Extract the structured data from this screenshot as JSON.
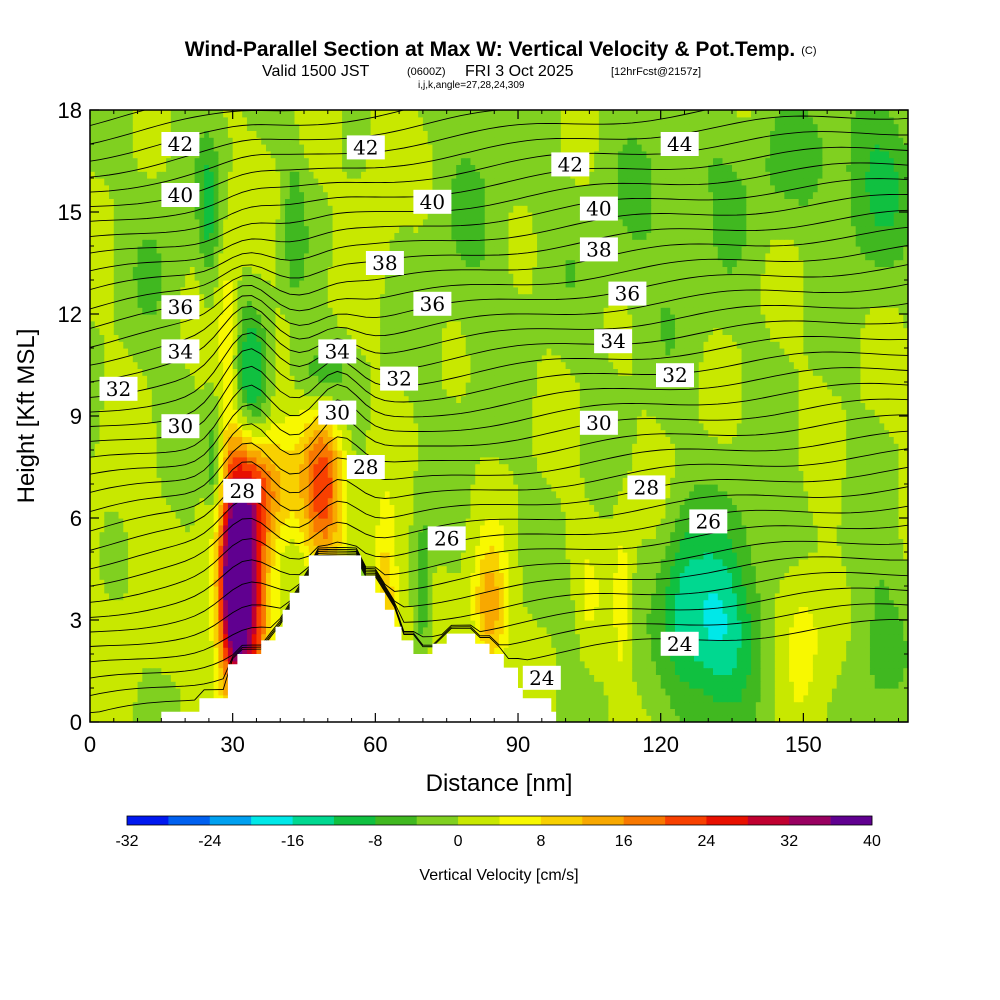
{
  "title": {
    "main": "Wind-Parallel Section at Max W: Vertical Velocity & Pot.Temp.",
    "copyright": "(C)",
    "valid_prefix": "Valid 1500 JST",
    "utc": "(0600Z)",
    "valid_date": "FRI 3 Oct 2025",
    "forecast": "[12hrFcst@2157z]",
    "indices": "i,j,k,angle=27,28,24,309"
  },
  "chart_data": {
    "type": "heatmap",
    "xlabel": "Distance [nm]",
    "ylabel": "Height [Kft MSL]",
    "xlim": [
      0,
      172
    ],
    "ylim": [
      0,
      18
    ],
    "x_ticks": [
      0,
      30,
      60,
      90,
      120,
      150
    ],
    "y_ticks": [
      0,
      3,
      6,
      9,
      12,
      15,
      18
    ],
    "colorbar": {
      "title": "Vertical Velocity [cm/s]",
      "min": -32,
      "max": 40,
      "step": 4,
      "tick_labels": [
        "-32",
        "-24",
        "-16",
        "-8",
        "0",
        "8",
        "16",
        "24",
        "32",
        "40"
      ],
      "colors": [
        "#0018f0",
        "#0060f0",
        "#00a0f0",
        "#00e8e8",
        "#00d890",
        "#10c040",
        "#40b820",
        "#80d020",
        "#c8e800",
        "#f8f800",
        "#f8d000",
        "#f8a800",
        "#f87800",
        "#f84000",
        "#e81000",
        "#c00030",
        "#980060",
        "#600090"
      ]
    },
    "contour_labels": [
      {
        "value": "42",
        "x": 19,
        "y": 17.0
      },
      {
        "value": "42",
        "x": 58,
        "y": 16.9
      },
      {
        "value": "42",
        "x": 101,
        "y": 16.4
      },
      {
        "value": "44",
        "x": 124,
        "y": 17.0
      },
      {
        "value": "40",
        "x": 19,
        "y": 15.5
      },
      {
        "value": "40",
        "x": 72,
        "y": 15.3
      },
      {
        "value": "40",
        "x": 107,
        "y": 15.1
      },
      {
        "value": "38",
        "x": 62,
        "y": 13.5
      },
      {
        "value": "38",
        "x": 107,
        "y": 13.9
      },
      {
        "value": "36",
        "x": 19,
        "y": 12.2
      },
      {
        "value": "36",
        "x": 72,
        "y": 12.3
      },
      {
        "value": "36",
        "x": 113,
        "y": 12.6
      },
      {
        "value": "34",
        "x": 19,
        "y": 10.9
      },
      {
        "value": "34",
        "x": 52,
        "y": 10.9
      },
      {
        "value": "34",
        "x": 110,
        "y": 11.2
      },
      {
        "value": "32",
        "x": 6,
        "y": 9.8
      },
      {
        "value": "32",
        "x": 65,
        "y": 10.1
      },
      {
        "value": "32",
        "x": 123,
        "y": 10.2
      },
      {
        "value": "30",
        "x": 19,
        "y": 8.7
      },
      {
        "value": "30",
        "x": 52,
        "y": 9.1
      },
      {
        "value": "30",
        "x": 107,
        "y": 8.8
      },
      {
        "value": "28",
        "x": 32,
        "y": 6.8
      },
      {
        "value": "28",
        "x": 58,
        "y": 7.5
      },
      {
        "value": "28",
        "x": 117,
        "y": 6.9
      },
      {
        "value": "26",
        "x": 75,
        "y": 5.4
      },
      {
        "value": "26",
        "x": 130,
        "y": 5.9
      },
      {
        "value": "24",
        "x": 95,
        "y": 1.3
      },
      {
        "value": "24",
        "x": 124,
        "y": 2.3
      }
    ],
    "w_features": [
      {
        "x": 32,
        "y": 4.3,
        "w": 36,
        "sx": 3.5,
        "sy": 2.8
      },
      {
        "x": 30,
        "y": 3.8,
        "w": 24,
        "sx": 2.5,
        "sy": 1.6
      },
      {
        "x": 38,
        "y": 6.8,
        "w": 14,
        "sx": 5.0,
        "sy": 1.2
      },
      {
        "x": 49,
        "y": 7.1,
        "w": 22,
        "sx": 3.0,
        "sy": 1.6
      },
      {
        "x": 62,
        "y": 3.5,
        "w": 14,
        "sx": 2.0,
        "sy": 1.8
      },
      {
        "x": 84,
        "y": 3.3,
        "w": 16,
        "sx": 2.5,
        "sy": 1.3
      },
      {
        "x": 29,
        "y": 11.5,
        "w": 8,
        "sx": 1.5,
        "sy": 1.6
      },
      {
        "x": 102,
        "y": 3.6,
        "w": 5,
        "sx": 3.0,
        "sy": 1.5
      },
      {
        "x": 112,
        "y": 3.5,
        "w": 6,
        "sx": 1.5,
        "sy": 2.0
      },
      {
        "x": 150,
        "y": 3.0,
        "w": 8,
        "sx": 4.0,
        "sy": 1.5
      },
      {
        "x": 34,
        "y": 9.8,
        "w": -14,
        "sx": 2.5,
        "sy": 1.5
      },
      {
        "x": 26,
        "y": 7.6,
        "w": -10,
        "sx": 1.3,
        "sy": 1.2
      },
      {
        "x": 27,
        "y": 4.5,
        "w": -6,
        "sx": 1.5,
        "sy": 2.0
      },
      {
        "x": 48,
        "y": 10.2,
        "w": -8,
        "sx": 4.0,
        "sy": 0.8
      },
      {
        "x": 131,
        "y": 2.7,
        "w": -16,
        "sx": 5.5,
        "sy": 1.8
      },
      {
        "x": 124,
        "y": 3.5,
        "w": -7,
        "sx": 3.0,
        "sy": 2.0
      },
      {
        "x": 70,
        "y": 3.8,
        "w": -9,
        "sx": 1.2,
        "sy": 1.5
      },
      {
        "x": 101,
        "y": 3.0,
        "w": -6,
        "sx": 2.0,
        "sy": 1.5
      },
      {
        "x": 25,
        "y": 15.0,
        "w": -8,
        "sx": 1.5,
        "sy": 1.5
      },
      {
        "x": 43,
        "y": 14.6,
        "w": -6,
        "sx": 1.5,
        "sy": 1.5
      },
      {
        "x": 165,
        "y": 15.5,
        "w": -6,
        "sx": 5.0,
        "sy": 2.0
      },
      {
        "x": 150,
        "y": 16.5,
        "w": -4,
        "sx": 20.0,
        "sy": 1.5
      },
      {
        "x": 118,
        "y": 14.0,
        "w": -3,
        "sx": 14.0,
        "sy": 2.5
      },
      {
        "x": 80,
        "y": 14.5,
        "w": -3,
        "sx": 8.0,
        "sy": 4.0
      },
      {
        "x": 15,
        "y": 13.5,
        "w": -3,
        "sx": 5.0,
        "sy": 3.0
      },
      {
        "x": 140,
        "y": 5.0,
        "w": -4,
        "sx": 8.0,
        "sy": 2.0
      },
      {
        "x": 165,
        "y": 2.5,
        "w": -6,
        "sx": 4.0,
        "sy": 2.0
      },
      {
        "x": 60,
        "y": 16.5,
        "w": 3,
        "sx": 3.0,
        "sy": 2.0
      },
      {
        "x": 8,
        "y": 5.0,
        "w": 2,
        "sx": 6.0,
        "sy": 3.0
      }
    ],
    "terrain": [
      [
        15,
        0
      ],
      [
        15,
        0.3
      ],
      [
        23,
        0.3
      ],
      [
        23,
        0.7
      ],
      [
        29,
        0.7
      ],
      [
        29,
        1.7
      ],
      [
        31,
        1.7
      ],
      [
        31,
        2.0
      ],
      [
        36,
        2.0
      ],
      [
        36,
        2.4
      ],
      [
        39,
        2.4
      ],
      [
        39,
        2.8
      ],
      [
        40.5,
        2.8
      ],
      [
        40.5,
        3.3
      ],
      [
        42,
        3.3
      ],
      [
        42,
        3.8
      ],
      [
        44,
        3.8
      ],
      [
        44,
        4.3
      ],
      [
        46,
        4.3
      ],
      [
        46,
        4.9
      ],
      [
        57,
        4.9
      ],
      [
        57,
        4.3
      ],
      [
        60,
        4.3
      ],
      [
        60,
        3.8
      ],
      [
        62,
        3.8
      ],
      [
        62,
        3.3
      ],
      [
        64,
        3.3
      ],
      [
        64,
        2.8
      ],
      [
        65.5,
        2.8
      ],
      [
        65.5,
        2.4
      ],
      [
        68,
        2.4
      ],
      [
        68,
        2.0
      ],
      [
        72,
        2.0
      ],
      [
        72,
        2.3
      ],
      [
        75,
        2.3
      ],
      [
        75,
        2.6
      ],
      [
        81,
        2.6
      ],
      [
        81,
        2.3
      ],
      [
        84,
        2.3
      ],
      [
        84,
        2.0
      ],
      [
        87,
        2.0
      ],
      [
        87,
        1.6
      ],
      [
        90,
        1.6
      ],
      [
        90,
        1.0
      ],
      [
        91,
        1.0
      ],
      [
        91,
        0.7
      ],
      [
        97,
        0.7
      ],
      [
        97,
        0.3
      ],
      [
        98,
        0.3
      ],
      [
        98,
        0
      ]
    ]
  }
}
